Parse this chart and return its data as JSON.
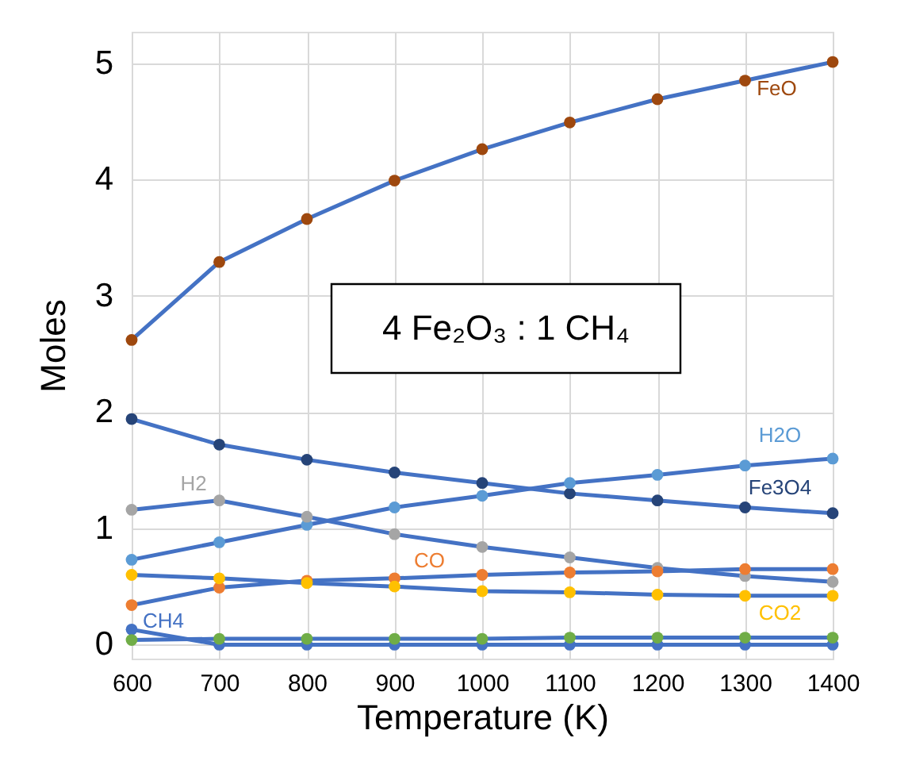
{
  "chart_data": {
    "type": "line",
    "xlabel": "Temperature (K)",
    "ylabel": "Moles",
    "x": [
      600,
      700,
      800,
      900,
      1000,
      1100,
      1200,
      1300,
      1400
    ],
    "xlim": [
      600,
      1400
    ],
    "xticks": [
      600,
      700,
      800,
      900,
      1000,
      1100,
      1200,
      1300,
      1400
    ],
    "ylim": [
      -0.12,
      5.27
    ],
    "yticks": [
      0,
      1,
      2,
      3,
      4,
      5
    ],
    "grid": true,
    "marker": "circle",
    "line_style": "solid",
    "legend": false,
    "annotations": [
      "4 Fe₂O₃ : 1 CH₄"
    ],
    "series": [
      {
        "name": "FeO",
        "color": "#9e480e",
        "values": [
          2.62,
          3.29,
          3.66,
          3.99,
          4.26,
          4.49,
          4.69,
          4.85,
          5.01
        ]
      },
      {
        "name": "Fe3O4",
        "color": "#264478",
        "values": [
          1.94,
          1.72,
          1.59,
          1.48,
          1.39,
          1.3,
          1.24,
          1.18,
          1.13
        ]
      },
      {
        "name": "H2O",
        "color": "#5b9bd5",
        "values": [
          0.73,
          0.88,
          1.03,
          1.18,
          1.28,
          1.39,
          1.46,
          1.54,
          1.6
        ]
      },
      {
        "name": "H2",
        "color": "#a5a5a5",
        "values": [
          1.16,
          1.24,
          1.1,
          0.95,
          0.84,
          0.75,
          0.66,
          0.59,
          0.54
        ]
      },
      {
        "name": "CO",
        "color": "#ed7d31",
        "values": [
          0.34,
          0.49,
          0.55,
          0.57,
          0.6,
          0.62,
          0.63,
          0.65,
          0.65
        ]
      },
      {
        "name": "CO2",
        "color": "#ffc000",
        "values": [
          0.6,
          0.57,
          0.53,
          0.5,
          0.46,
          0.45,
          0.43,
          0.42,
          0.42
        ]
      },
      {
        "name": "CH4",
        "color": "#4472c4",
        "values": [
          0.13,
          0.0,
          0.0,
          0.0,
          0.0,
          0.0,
          0.0,
          0.0,
          0.0
        ]
      },
      {
        "color": "#70ad47",
        "values": [
          0.04,
          0.05,
          0.05,
          0.05,
          0.05,
          0.06,
          0.06,
          0.06,
          0.06
        ]
      }
    ]
  }
}
